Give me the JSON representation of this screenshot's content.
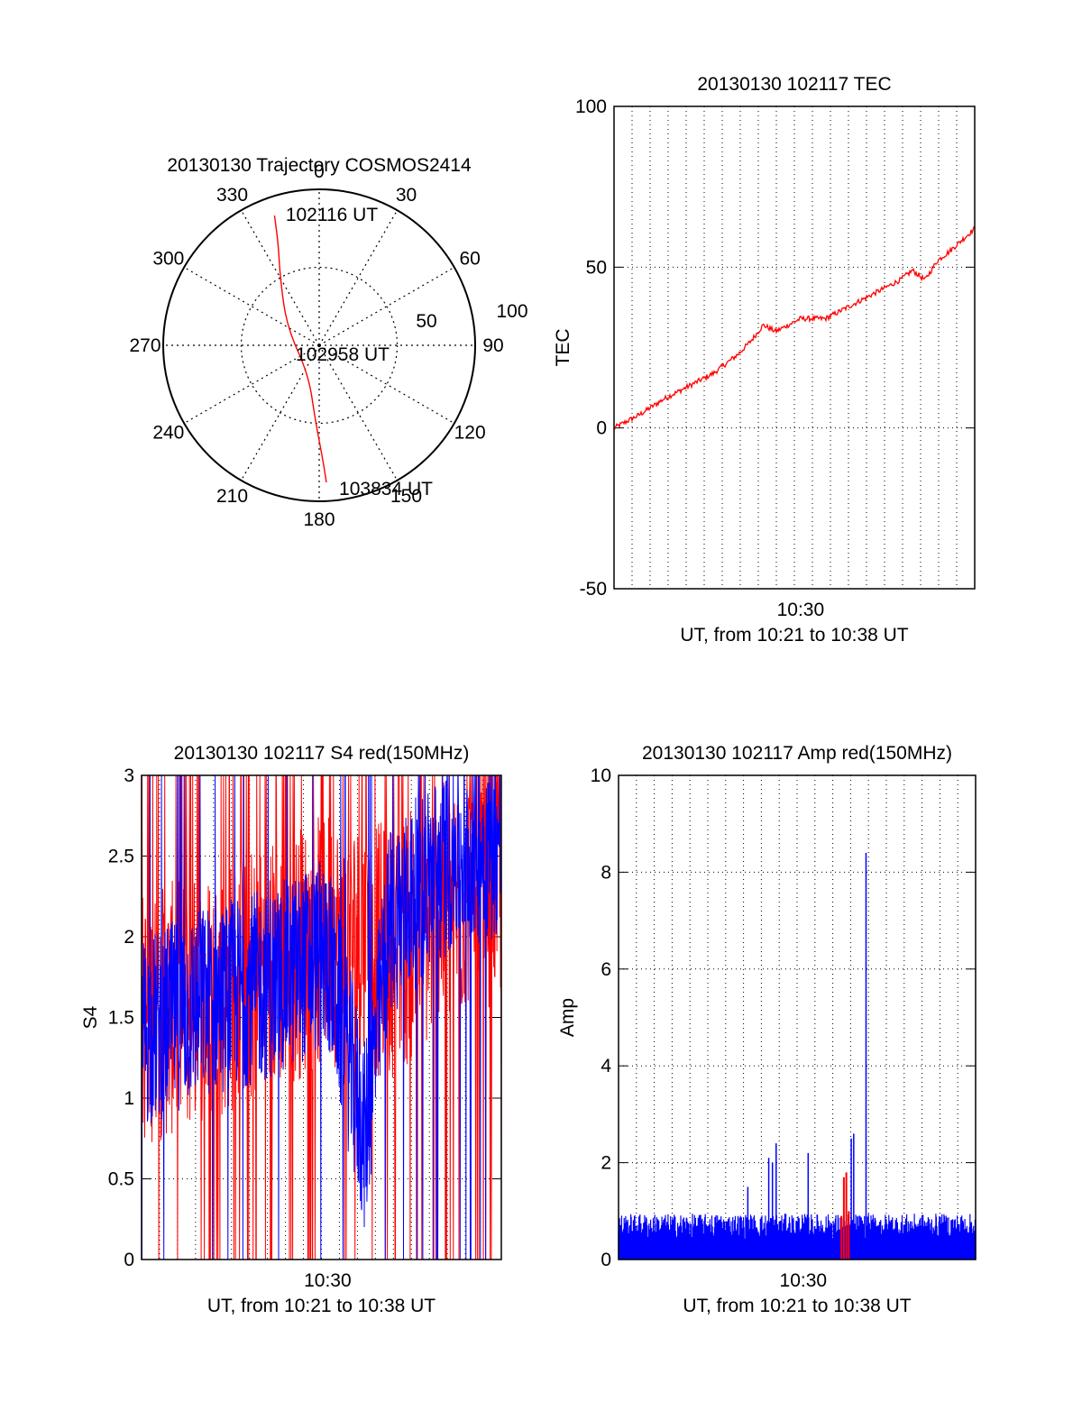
{
  "colors": {
    "red_channel": "#ff0000",
    "blue_channel": "#0000ff",
    "axis": "#000000",
    "grid": "#000000"
  },
  "chart_data": [
    {
      "type": "polar",
      "title": "20130130 Trajectory COSMOS2414",
      "angle_labels": [
        "0",
        "30",
        "60",
        "90",
        "120",
        "150",
        "180",
        "210",
        "240",
        "270",
        "300",
        "330"
      ],
      "radius_labels": [
        "50",
        "100"
      ],
      "radius_range": [
        0,
        100
      ],
      "series": [
        {
          "name": "trajectory",
          "color": "#ff0000",
          "points_az_r": [
            [
              341,
              88
            ],
            [
              338,
              70
            ],
            [
              330,
              50
            ],
            [
              300,
              24
            ],
            [
              200,
              20
            ],
            [
              183,
              48
            ],
            [
              178,
              75
            ],
            [
              177,
              88
            ]
          ]
        }
      ],
      "annotations": [
        {
          "text": "102116 UT",
          "at": "start"
        },
        {
          "text": "102958 UT",
          "at": "middle"
        },
        {
          "text": "103834 UT",
          "at": "end"
        }
      ]
    },
    {
      "type": "line",
      "title": "20130130 102117 TEC",
      "xlabel": "UT, from 10:21 to 10:38 UT",
      "ylabel": "TEC",
      "xlim": [
        10.35,
        10.64
      ],
      "ylim": [
        -50,
        100
      ],
      "yticks": [
        "-50",
        "0",
        "50",
        "100"
      ],
      "xticks": [
        {
          "x": 10.5,
          "label": "10:30"
        }
      ],
      "grid": true,
      "series": [
        {
          "color": "#ff0000",
          "x": [
            10.35,
            10.37,
            10.39,
            10.41,
            10.43,
            10.45,
            10.46,
            10.47,
            10.48,
            10.5,
            10.52,
            10.54,
            10.56,
            10.58,
            10.59,
            10.6,
            10.61,
            10.62,
            10.64
          ],
          "y": [
            0,
            4,
            9,
            13,
            17,
            23,
            27,
            32,
            30,
            34,
            34,
            38,
            42,
            46,
            49,
            46,
            52,
            55,
            62
          ]
        }
      ]
    },
    {
      "type": "line",
      "title": "20130130 102117 S4 red(150MHz)",
      "xlabel": "UT, from 10:21 to 10:38 UT",
      "ylabel": "S4",
      "xlim": [
        10.35,
        10.64
      ],
      "ylim": [
        0,
        3
      ],
      "yticks": [
        "0",
        "0.5",
        "1",
        "1.5",
        "2",
        "2.5",
        "3"
      ],
      "xticks": [
        {
          "x": 10.5,
          "label": "10:30"
        }
      ],
      "grid": true,
      "series": [
        {
          "color": "#ff0000",
          "x": [
            10.35,
            10.4,
            10.45,
            10.5,
            10.55,
            10.6,
            10.64
          ],
          "y": [
            1.5,
            1.6,
            1.8,
            2.0,
            1.9,
            2.2,
            2.4
          ]
        },
        {
          "color": "#0000ff",
          "x": [
            10.35,
            10.4,
            10.45,
            10.5,
            10.53,
            10.55,
            10.6,
            10.64
          ],
          "y": [
            1.4,
            1.6,
            1.7,
            1.9,
            0.75,
            2.1,
            2.5,
            2.6
          ]
        }
      ]
    },
    {
      "type": "line",
      "title": "20130130 102117 Amp red(150MHz)",
      "xlabel": "UT, from 10:21 to 10:38 UT",
      "ylabel": "Amp",
      "xlim": [
        10.35,
        10.64
      ],
      "ylim": [
        0,
        10
      ],
      "yticks": [
        "0",
        "2",
        "4",
        "6",
        "8",
        "10"
      ],
      "xticks": [
        {
          "x": 10.5,
          "label": "10:30"
        }
      ],
      "grid": true,
      "series": [
        {
          "color": "#ff0000",
          "x": [
            10.531,
            10.533,
            10.535,
            10.537
          ],
          "y": [
            0.9,
            1.7,
            1.8,
            1.0
          ]
        },
        {
          "color": "#0000ff",
          "base_level": 0.7,
          "spikes_x": [
            10.455,
            10.472,
            10.475,
            10.478,
            10.504,
            10.539,
            10.541,
            10.551
          ],
          "spikes_y": [
            1.5,
            2.1,
            2.0,
            2.4,
            2.2,
            2.5,
            2.6,
            8.4
          ]
        }
      ]
    }
  ]
}
